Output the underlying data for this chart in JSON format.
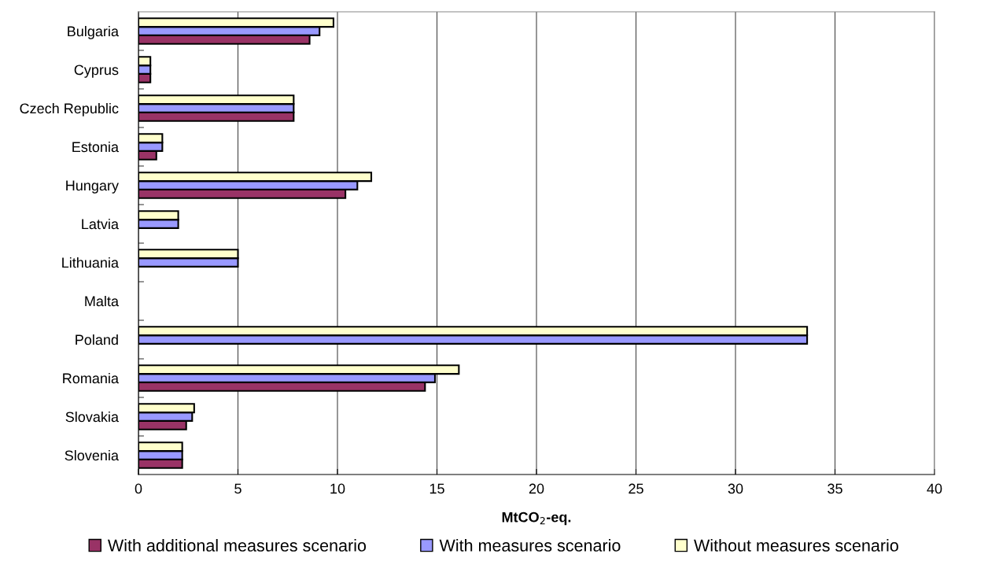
{
  "chart_data": {
    "type": "bar",
    "orientation": "horizontal",
    "xlabel": "MtCO$_{2}$-eq.",
    "categories": [
      "Bulgaria",
      "Cyprus",
      "Czech Republic",
      "Estonia",
      "Hungary",
      "Latvia",
      "Lithuania",
      "Malta",
      "Poland",
      "Romania",
      "Slovakia",
      "Slovenia"
    ],
    "series": [
      {
        "name": "With additional measures scenario",
        "color": "#993366",
        "values": [
          8.6,
          0.6,
          7.8,
          0.9,
          10.4,
          null,
          null,
          null,
          null,
          14.4,
          2.4,
          2.2
        ]
      },
      {
        "name": "With measures scenario",
        "color": "#9999ff",
        "values": [
          9.1,
          0.6,
          7.8,
          1.2,
          11.0,
          2.0,
          5.0,
          null,
          33.6,
          14.9,
          2.7,
          2.2
        ]
      },
      {
        "name": "Without measures scenario",
        "color": "#ffffcc",
        "values": [
          9.8,
          0.6,
          7.8,
          1.2,
          11.7,
          2.0,
          5.0,
          null,
          33.6,
          16.1,
          2.8,
          2.2
        ]
      }
    ],
    "xlim": [
      0,
      40
    ],
    "xticks": [
      0,
      5,
      10,
      15,
      20,
      25,
      30,
      35,
      40
    ],
    "grid": "x",
    "legend": "bottom"
  }
}
